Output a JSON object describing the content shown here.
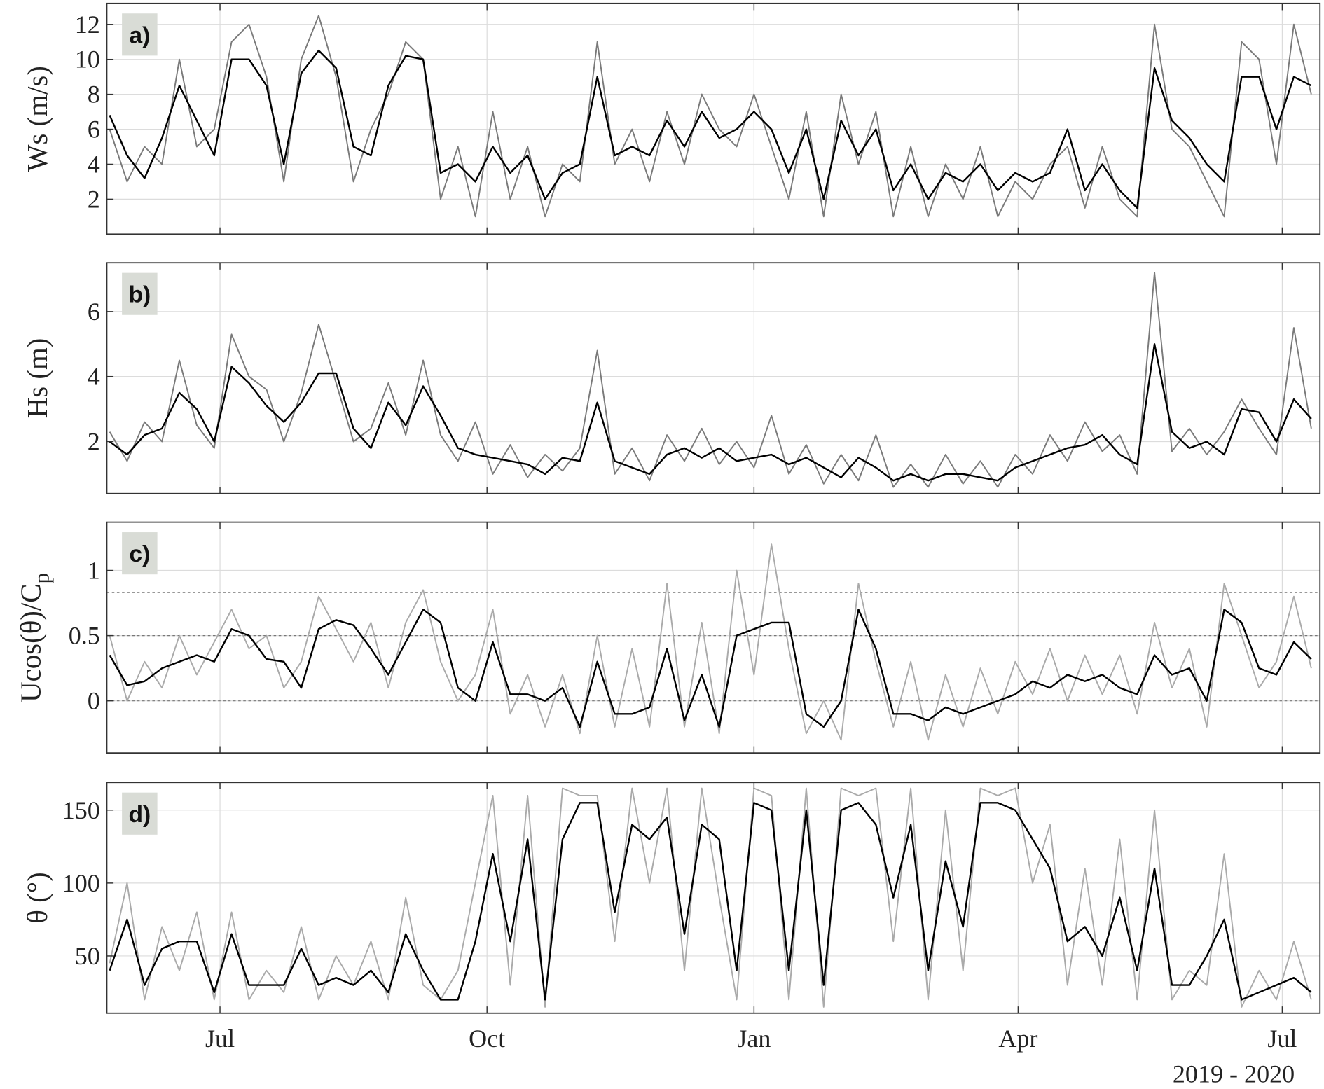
{
  "chart_data": [
    {
      "type": "line",
      "panel_label": "a)",
      "ylabel": "Ws (m/s)",
      "x": [
        -38,
        -32,
        -26,
        -20,
        -14,
        -8,
        -2,
        4,
        10,
        16,
        22,
        28,
        34,
        40,
        46,
        52,
        58,
        64,
        70,
        76,
        82,
        88,
        94,
        100,
        106,
        112,
        118,
        124,
        130,
        136,
        142,
        148,
        154,
        160,
        166,
        172,
        178,
        184,
        190,
        196,
        202,
        208,
        214,
        220,
        226,
        232,
        238,
        244,
        250,
        256,
        262,
        268,
        274,
        280,
        286,
        292,
        298,
        304,
        310,
        316,
        322,
        328,
        334,
        340,
        346,
        352,
        358,
        364,
        370,
        376
      ],
      "xlim": [
        -39,
        379
      ],
      "xticks": [
        0,
        92,
        184,
        275,
        366
      ],
      "ylim": [
        0,
        13.2
      ],
      "yticks": [
        2,
        4,
        6,
        8,
        10,
        12
      ],
      "grid": true,
      "series": [
        {
          "color": "#7a7a7a",
          "values": [
            6,
            3,
            5,
            4,
            10,
            5,
            6,
            11,
            12,
            9,
            3,
            10,
            12.5,
            9,
            3,
            6,
            8,
            11,
            10,
            2,
            5,
            1,
            7,
            2,
            5,
            1,
            4,
            3,
            11,
            4,
            6,
            3,
            7,
            4,
            8,
            6,
            5,
            8,
            5,
            2,
            7,
            1,
            8,
            4,
            7,
            1,
            5,
            1,
            4,
            2,
            5,
            1,
            3,
            2,
            4,
            5,
            1.5,
            5,
            2,
            1,
            12,
            6,
            5,
            3,
            1,
            11,
            10,
            4,
            12,
            8
          ]
        },
        {
          "color": "#000000",
          "values": [
            6.8,
            4.5,
            3.2,
            5.5,
            8.5,
            6.5,
            4.5,
            10,
            10,
            8.5,
            4,
            9.2,
            10.5,
            9.5,
            5,
            4.5,
            8.5,
            10.2,
            10,
            3.5,
            4,
            3,
            5,
            3.5,
            4.5,
            2,
            3.5,
            4,
            9,
            4.5,
            5,
            4.5,
            6.5,
            5,
            7,
            5.5,
            6,
            7,
            6,
            3.5,
            6,
            2,
            6.5,
            4.5,
            6,
            2.5,
            4,
            2,
            3.5,
            3,
            4,
            2.5,
            3.5,
            3,
            3.5,
            6,
            2.5,
            4,
            2.5,
            1.5,
            9.5,
            6.5,
            5.5,
            4,
            3,
            9,
            9,
            6,
            9,
            8.5
          ]
        }
      ]
    },
    {
      "type": "line",
      "panel_label": "b)",
      "ylabel": "Hs (m)",
      "x": [
        -38,
        -32,
        -26,
        -20,
        -14,
        -8,
        -2,
        4,
        10,
        16,
        22,
        28,
        34,
        40,
        46,
        52,
        58,
        64,
        70,
        76,
        82,
        88,
        94,
        100,
        106,
        112,
        118,
        124,
        130,
        136,
        142,
        148,
        154,
        160,
        166,
        172,
        178,
        184,
        190,
        196,
        202,
        208,
        214,
        220,
        226,
        232,
        238,
        244,
        250,
        256,
        262,
        268,
        274,
        280,
        286,
        292,
        298,
        304,
        310,
        316,
        322,
        328,
        334,
        340,
        346,
        352,
        358,
        364,
        370,
        376
      ],
      "xlim": [
        -39,
        379
      ],
      "xticks": [
        0,
        92,
        184,
        275,
        366
      ],
      "ylim": [
        0.4,
        7.5
      ],
      "yticks": [
        2,
        4,
        6
      ],
      "grid": true,
      "series": [
        {
          "color": "#7a7a7a",
          "values": [
            2.3,
            1.4,
            2.6,
            2.0,
            4.5,
            2.5,
            1.8,
            5.3,
            4.0,
            3.6,
            2.0,
            3.5,
            5.6,
            3.8,
            2.0,
            2.4,
            3.8,
            2.2,
            4.5,
            2.2,
            1.4,
            2.6,
            1.0,
            1.9,
            0.9,
            1.6,
            1.1,
            1.8,
            4.8,
            1.0,
            1.8,
            0.8,
            2.2,
            1.4,
            2.4,
            1.3,
            2.0,
            1.2,
            2.8,
            1.0,
            1.9,
            0.7,
            1.6,
            0.8,
            2.2,
            0.6,
            1.3,
            0.6,
            1.6,
            0.7,
            1.4,
            0.6,
            1.6,
            1.0,
            2.2,
            1.4,
            2.6,
            1.7,
            2.2,
            1.0,
            7.2,
            1.7,
            2.4,
            1.6,
            2.3,
            3.3,
            2.4,
            1.6,
            5.5,
            2.4
          ]
        },
        {
          "color": "#000000",
          "values": [
            2,
            1.6,
            2.2,
            2.4,
            3.5,
            3,
            2,
            4.3,
            3.8,
            3.1,
            2.6,
            3.2,
            4.1,
            4.1,
            2.4,
            1.8,
            3.2,
            2.5,
            3.7,
            2.8,
            1.8,
            1.6,
            1.5,
            1.4,
            1.3,
            1.0,
            1.5,
            1.4,
            3.2,
            1.4,
            1.2,
            1.0,
            1.6,
            1.8,
            1.5,
            1.8,
            1.4,
            1.5,
            1.6,
            1.3,
            1.5,
            1.2,
            0.9,
            1.5,
            1.2,
            0.8,
            1.0,
            0.8,
            1.0,
            1.0,
            0.9,
            0.8,
            1.2,
            1.4,
            1.6,
            1.8,
            1.9,
            2.2,
            1.6,
            1.3,
            5.0,
            2.3,
            1.8,
            2.0,
            1.6,
            3.0,
            2.9,
            2.0,
            3.3,
            2.7
          ]
        }
      ]
    },
    {
      "type": "line",
      "panel_label": "c)",
      "ylabel": "Ucos(θ)/C",
      "ylabel_sub": "p",
      "x": [
        -38,
        -32,
        -26,
        -20,
        -14,
        -8,
        -2,
        4,
        10,
        16,
        22,
        28,
        34,
        40,
        46,
        52,
        58,
        64,
        70,
        76,
        82,
        88,
        94,
        100,
        106,
        112,
        118,
        124,
        130,
        136,
        142,
        148,
        154,
        160,
        166,
        172,
        178,
        184,
        190,
        196,
        202,
        208,
        214,
        220,
        226,
        232,
        238,
        244,
        250,
        256,
        262,
        268,
        274,
        280,
        286,
        292,
        298,
        304,
        310,
        316,
        322,
        328,
        334,
        340,
        346,
        352,
        358,
        364,
        370,
        376
      ],
      "xlim": [
        -39,
        379
      ],
      "xticks": [
        0,
        92,
        184,
        275,
        366
      ],
      "ylim": [
        -0.4,
        1.37
      ],
      "yticks": [
        0,
        0.5,
        1
      ],
      "grid": true,
      "ref_lines": [
        0,
        0.5,
        0.83
      ],
      "series": [
        {
          "color": "#aaaaaa",
          "values": [
            0.5,
            0.0,
            0.3,
            0.1,
            0.5,
            0.2,
            0.45,
            0.7,
            0.4,
            0.5,
            0.1,
            0.3,
            0.8,
            0.55,
            0.3,
            0.6,
            0.1,
            0.6,
            0.85,
            0.3,
            0.0,
            0.2,
            0.7,
            -0.1,
            0.2,
            -0.2,
            0.2,
            -0.25,
            0.5,
            -0.2,
            0.4,
            -0.2,
            0.9,
            -0.2,
            0.6,
            -0.25,
            1.0,
            0.2,
            1.2,
            0.4,
            -0.25,
            0.0,
            -0.3,
            0.9,
            0.3,
            -0.2,
            0.3,
            -0.3,
            0.2,
            -0.2,
            0.25,
            -0.1,
            0.3,
            0.05,
            0.4,
            0.0,
            0.35,
            0.05,
            0.35,
            -0.1,
            0.6,
            0.1,
            0.4,
            -0.2,
            0.9,
            0.5,
            0.1,
            0.3,
            0.8,
            0.25
          ]
        },
        {
          "color": "#000000",
          "values": [
            0.35,
            0.12,
            0.15,
            0.25,
            0.3,
            0.35,
            0.3,
            0.55,
            0.5,
            0.32,
            0.3,
            0.1,
            0.55,
            0.62,
            0.58,
            0.4,
            0.2,
            0.45,
            0.7,
            0.6,
            0.1,
            0.0,
            0.45,
            0.05,
            0.05,
            0.0,
            0.1,
            -0.2,
            0.3,
            -0.1,
            -0.1,
            -0.05,
            0.4,
            -0.15,
            0.2,
            -0.2,
            0.5,
            0.55,
            0.6,
            0.6,
            -0.1,
            -0.2,
            0.0,
            0.7,
            0.4,
            -0.1,
            -0.1,
            -0.15,
            -0.05,
            -0.1,
            -0.05,
            0.0,
            0.05,
            0.15,
            0.1,
            0.2,
            0.15,
            0.2,
            0.1,
            0.05,
            0.35,
            0.2,
            0.25,
            0.0,
            0.7,
            0.6,
            0.25,
            0.2,
            0.45,
            0.32
          ]
        }
      ]
    },
    {
      "type": "line",
      "panel_label": "d)",
      "ylabel": "θ (°)",
      "xlabel": "2019 - 2020",
      "x": [
        -38,
        -32,
        -26,
        -20,
        -14,
        -8,
        -2,
        4,
        10,
        16,
        22,
        28,
        34,
        40,
        46,
        52,
        58,
        64,
        70,
        76,
        82,
        88,
        94,
        100,
        106,
        112,
        118,
        124,
        130,
        136,
        142,
        148,
        154,
        160,
        166,
        172,
        178,
        184,
        190,
        196,
        202,
        208,
        214,
        220,
        226,
        232,
        238,
        244,
        250,
        256,
        262,
        268,
        274,
        280,
        286,
        292,
        298,
        304,
        310,
        316,
        322,
        328,
        334,
        340,
        346,
        352,
        358,
        364,
        370,
        376
      ],
      "xlim": [
        -39,
        379
      ],
      "xticks": [
        {
          "value": 0,
          "label": "Jul"
        },
        {
          "value": 92,
          "label": "Oct"
        },
        {
          "value": 184,
          "label": "Jan"
        },
        {
          "value": 275,
          "label": "Apr"
        },
        {
          "value": 366,
          "label": "Jul"
        }
      ],
      "ylim": [
        10.7,
        169
      ],
      "yticks": [
        50,
        100,
        150
      ],
      "grid": true,
      "series": [
        {
          "color": "#aaaaaa",
          "values": [
            45,
            100,
            20,
            70,
            40,
            80,
            20,
            80,
            20,
            40,
            25,
            70,
            20,
            50,
            30,
            60,
            20,
            90,
            30,
            20,
            40,
            100,
            160,
            30,
            160,
            15,
            165,
            160,
            160,
            60,
            165,
            100,
            165,
            40,
            165,
            90,
            20,
            165,
            160,
            20,
            165,
            15,
            165,
            160,
            165,
            60,
            165,
            20,
            150,
            40,
            165,
            160,
            165,
            100,
            140,
            30,
            110,
            30,
            130,
            20,
            150,
            20,
            40,
            30,
            120,
            15,
            40,
            20,
            60,
            20
          ]
        },
        {
          "color": "#000000",
          "values": [
            40,
            75,
            30,
            55,
            60,
            60,
            25,
            65,
            30,
            30,
            30,
            55,
            30,
            35,
            30,
            40,
            25,
            65,
            40,
            20,
            20,
            60,
            120,
            60,
            130,
            20,
            130,
            155,
            155,
            80,
            140,
            130,
            145,
            65,
            140,
            130,
            40,
            155,
            150,
            40,
            150,
            30,
            150,
            155,
            140,
            90,
            140,
            40,
            115,
            70,
            155,
            155,
            150,
            130,
            110,
            60,
            70,
            50,
            90,
            40,
            110,
            30,
            30,
            50,
            75,
            20,
            25,
            30,
            35,
            25
          ]
        }
      ]
    }
  ]
}
